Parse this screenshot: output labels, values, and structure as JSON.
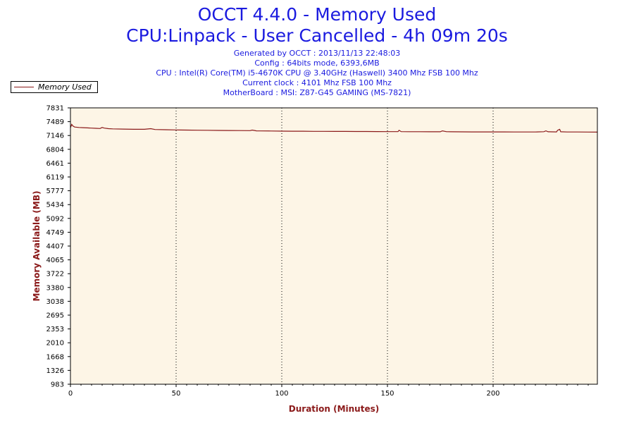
{
  "header": {
    "title_line1": "OCCT 4.4.0 - Memory Used",
    "title_line2": "CPU:Linpack - User Cancelled - 4h 09m 20s",
    "info_lines": [
      "Generated by OCCT : 2013/11/13 22:48:03",
      "Config : 64bits mode, 6393,6MB",
      "CPU : Intel(R) Core(TM) i5-4670K CPU @ 3.40GHz (Haswell) 3400 Mhz FSB 100 Mhz",
      "Current clock : 4101 Mhz FSB 100 Mhz",
      "MotherBoard : MSI: Z87-G45 GAMING (MS-7821)"
    ]
  },
  "legend": {
    "label": "Memory Used"
  },
  "colors": {
    "series": "#8b1a1a",
    "plot_background": "#fdf5e6",
    "title": "#1a1adf",
    "axis_title": "#8b1a1a"
  },
  "chart_data": {
    "type": "line",
    "xlabel": "Duration (Minutes)",
    "ylabel": "Memory Available (MB)",
    "xlim": [
      0,
      249.33
    ],
    "ylim": [
      983,
      7831
    ],
    "x_ticks": [
      0,
      50,
      100,
      150,
      200
    ],
    "y_ticks": [
      983,
      1326,
      1668,
      2010,
      2353,
      2695,
      3038,
      3380,
      3722,
      4065,
      4407,
      4749,
      5092,
      5434,
      5777,
      6119,
      6461,
      6804,
      7146,
      7489,
      7831
    ],
    "grid": "vertical dotted lines at x ticks",
    "legend_position": "top-left",
    "series": [
      {
        "name": "Memory Used",
        "points": [
          [
            0,
            7340
          ],
          [
            0.6,
            7420
          ],
          [
            1.2,
            7380
          ],
          [
            2,
            7355
          ],
          [
            4,
            7345
          ],
          [
            6,
            7340
          ],
          [
            8,
            7335
          ],
          [
            10,
            7330
          ],
          [
            12,
            7325
          ],
          [
            14,
            7320
          ],
          [
            15,
            7345
          ],
          [
            16,
            7330
          ],
          [
            18,
            7315
          ],
          [
            20,
            7310
          ],
          [
            25,
            7305
          ],
          [
            30,
            7300
          ],
          [
            35,
            7300
          ],
          [
            38,
            7315
          ],
          [
            40,
            7295
          ],
          [
            45,
            7290
          ],
          [
            50,
            7285
          ],
          [
            55,
            7280
          ],
          [
            60,
            7278
          ],
          [
            65,
            7275
          ],
          [
            70,
            7272
          ],
          [
            75,
            7270
          ],
          [
            80,
            7268
          ],
          [
            85,
            7266
          ],
          [
            86,
            7280
          ],
          [
            88,
            7262
          ],
          [
            90,
            7260
          ],
          [
            95,
            7258
          ],
          [
            100,
            7255
          ],
          [
            105,
            7253
          ],
          [
            110,
            7252
          ],
          [
            115,
            7250
          ],
          [
            120,
            7250
          ],
          [
            125,
            7248
          ],
          [
            130,
            7247
          ],
          [
            135,
            7246
          ],
          [
            140,
            7245
          ],
          [
            145,
            7244
          ],
          [
            150,
            7243
          ],
          [
            155,
            7242
          ],
          [
            155.5,
            7275
          ],
          [
            156.5,
            7242
          ],
          [
            160,
            7240
          ],
          [
            165,
            7240
          ],
          [
            170,
            7239
          ],
          [
            175,
            7238
          ],
          [
            176,
            7262
          ],
          [
            178,
            7240
          ],
          [
            180,
            7238
          ],
          [
            185,
            7237
          ],
          [
            190,
            7236
          ],
          [
            195,
            7236
          ],
          [
            200,
            7235
          ],
          [
            205,
            7235
          ],
          [
            210,
            7234
          ],
          [
            215,
            7234
          ],
          [
            220,
            7234
          ],
          [
            224,
            7240
          ],
          [
            225,
            7262
          ],
          [
            226,
            7238
          ],
          [
            230,
            7235
          ],
          [
            230.5,
            7275
          ],
          [
            231.5,
            7300
          ],
          [
            232,
            7238
          ],
          [
            235,
            7234
          ],
          [
            240,
            7233
          ],
          [
            245,
            7232
          ],
          [
            249.33,
            7230
          ]
        ]
      }
    ]
  }
}
